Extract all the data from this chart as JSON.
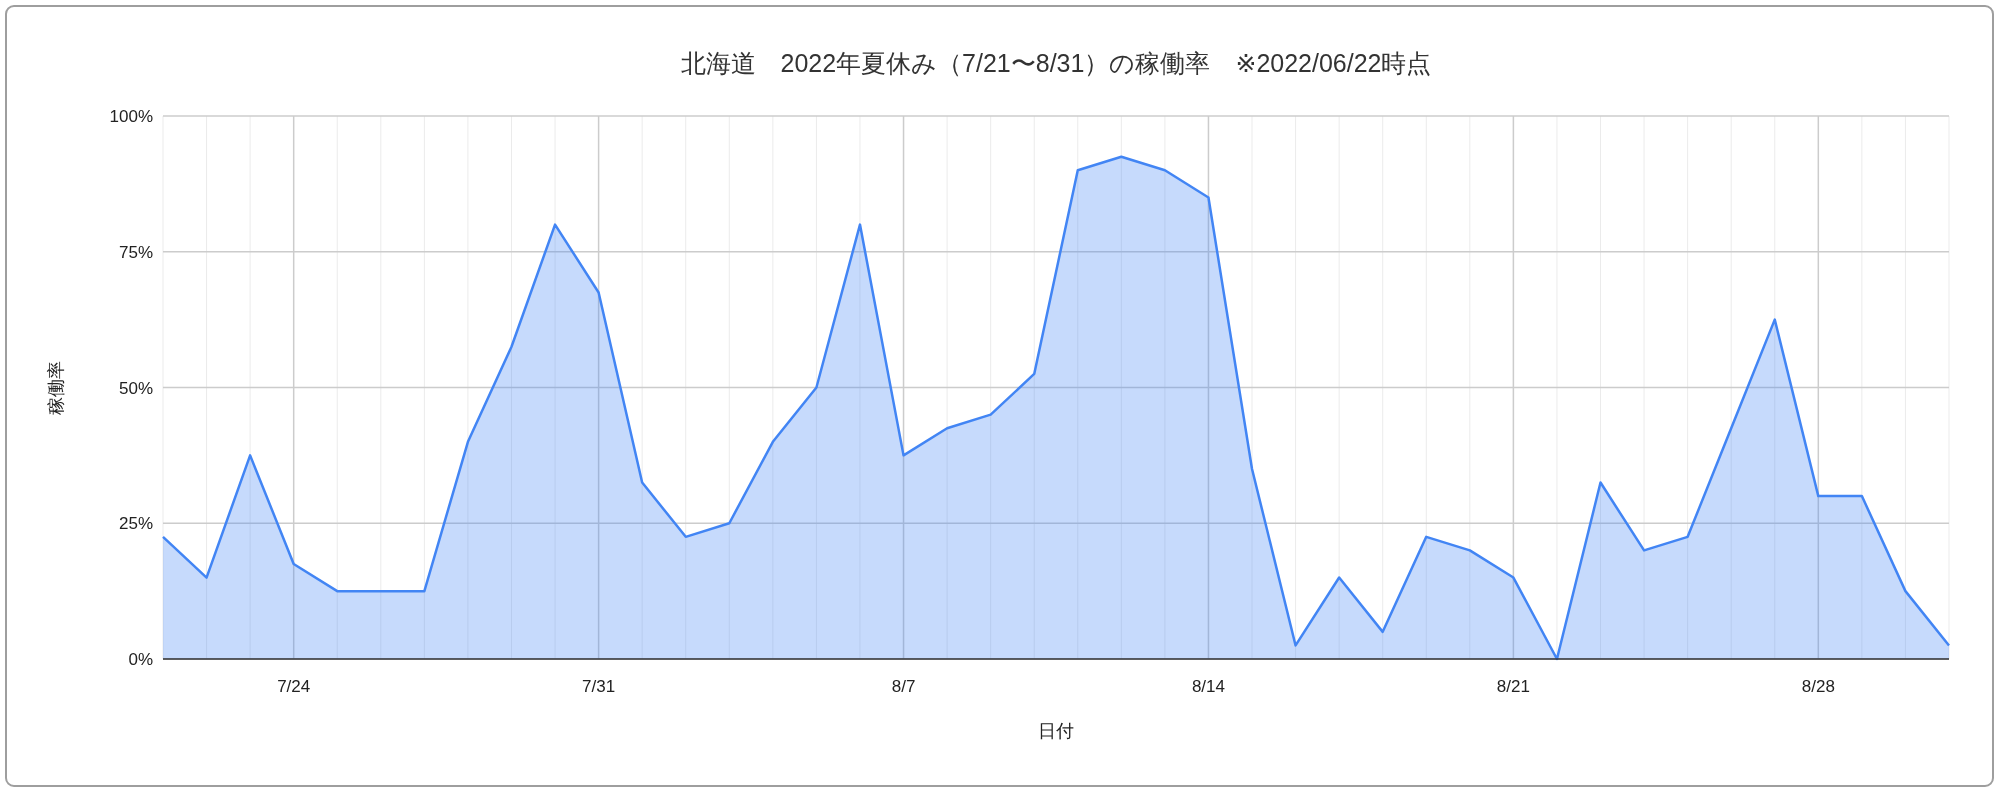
{
  "chart_data": {
    "type": "area",
    "title": "北海道　2022年夏休み（7/21〜8/31）の稼働率　※2022/06/22時点",
    "xlabel": "日付",
    "ylabel": "稼働率",
    "x": [
      "--07-21",
      "--07-22",
      "--07-23",
      "--07-24",
      "--07-25",
      "--07-26",
      "--07-27",
      "--07-28",
      "--07-29",
      "--07-30",
      "--07-31",
      "--08-01",
      "--08-02",
      "--08-03",
      "--08-04",
      "--08-05",
      "--08-06",
      "--08-07",
      "--08-08",
      "--08-09",
      "--08-10",
      "--08-11",
      "--08-12",
      "--08-13",
      "--08-14",
      "--08-15",
      "--08-16",
      "--08-17",
      "--08-18",
      "--08-19",
      "--08-20",
      "--08-21",
      "--08-22",
      "--08-23",
      "--08-24",
      "--08-25",
      "--08-26",
      "--08-27",
      "--08-28",
      "--08-29",
      "--08-30",
      "--08-31"
    ],
    "series": [
      {
        "color": "#4285f4",
        "values": [
          22.5,
          15,
          37.5,
          17.5,
          12.5,
          12.5,
          12.5,
          40,
          57.5,
          80,
          67.5,
          32.5,
          22.5,
          25,
          40,
          50,
          80,
          37.5,
          42.5,
          45,
          52.5,
          90,
          92.5,
          90,
          85,
          35,
          2.5,
          15,
          5,
          22.5,
          20,
          15,
          0,
          32.5,
          20,
          22.5,
          42.5,
          62.5,
          30,
          30,
          12.5,
          2.5
        ]
      }
    ],
    "xlim": [
      "--07-21",
      "--08-31"
    ],
    "xticks": [
      {
        "value": "--07-21",
        "label": null
      },
      {
        "value": "--07-22",
        "label": null
      },
      {
        "value": "--07-23",
        "label": null
      },
      {
        "value": "--07-24",
        "label": "7/24"
      },
      {
        "value": "--07-25",
        "label": null
      },
      {
        "value": "--07-26",
        "label": null
      },
      {
        "value": "--07-27",
        "label": null
      },
      {
        "value": "--07-28",
        "label": null
      },
      {
        "value": "--07-29",
        "label": null
      },
      {
        "value": "--07-30",
        "label": null
      },
      {
        "value": "--07-31",
        "label": "7/31"
      },
      {
        "value": "--08-01",
        "label": null
      },
      {
        "value": "--08-02",
        "label": null
      },
      {
        "value": "--08-03",
        "label": null
      },
      {
        "value": "--08-04",
        "label": null
      },
      {
        "value": "--08-05",
        "label": null
      },
      {
        "value": "--08-06",
        "label": null
      },
      {
        "value": "--08-07",
        "label": "8/7"
      },
      {
        "value": "--08-08",
        "label": null
      },
      {
        "value": "--08-09",
        "label": null
      },
      {
        "value": "--08-10",
        "label": null
      },
      {
        "value": "--08-11",
        "label": null
      },
      {
        "value": "--08-12",
        "label": null
      },
      {
        "value": "--08-13",
        "label": null
      },
      {
        "value": "--08-14",
        "label": "8/14"
      },
      {
        "value": "--08-15",
        "label": null
      },
      {
        "value": "--08-16",
        "label": null
      },
      {
        "value": "--08-17",
        "label": null
      },
      {
        "value": "--08-18",
        "label": null
      },
      {
        "value": "--08-19",
        "label": null
      },
      {
        "value": "--08-20",
        "label": null
      },
      {
        "value": "--08-21",
        "label": "8/21"
      },
      {
        "value": "--08-22",
        "label": null
      },
      {
        "value": "--08-23",
        "label": null
      },
      {
        "value": "--08-24",
        "label": null
      },
      {
        "value": "--08-25",
        "label": null
      },
      {
        "value": "--08-26",
        "label": null
      },
      {
        "value": "--08-27",
        "label": null
      },
      {
        "value": "--08-28",
        "label": "8/28"
      },
      {
        "value": "--08-29",
        "label": null
      },
      {
        "value": "--08-30",
        "label": null
      },
      {
        "value": "--08-31",
        "label": null
      }
    ],
    "ylim": [
      0,
      100
    ],
    "yticks": [
      {
        "value": 0,
        "label": "0%"
      },
      {
        "value": 25,
        "label": "25%"
      },
      {
        "value": 50,
        "label": "50%"
      },
      {
        "value": 75,
        "label": "75%"
      },
      {
        "value": 100,
        "label": "100%"
      }
    ],
    "grid": true
  }
}
